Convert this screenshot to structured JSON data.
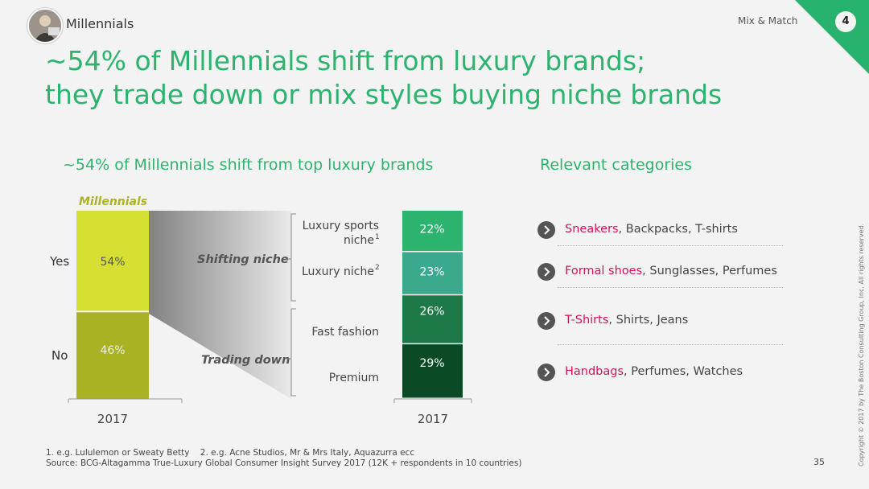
{
  "header": {
    "label": "Millennials",
    "section": "Mix & Match",
    "page_badge": "4"
  },
  "headline": {
    "line1": "~54% of Millennials shift from luxury brands;",
    "line2": "they trade down or mix styles buying niche brands"
  },
  "left_title": "~54% of Millennials shift from top luxury brands",
  "right_title": "Relevant categories",
  "colors": {
    "accent": "#2cb36e",
    "highlight": "#d4145a",
    "yes": "#d6e033",
    "no": "#a8b222",
    "s1": "#2cb36e",
    "s2": "#3ba98c",
    "s3": "#1d7a48",
    "s4": "#0a4a25"
  },
  "chart_data": [
    {
      "type": "bar",
      "title": "Millennials",
      "categories": [
        "2017"
      ],
      "series": [
        {
          "name": "Yes",
          "values": [
            54
          ]
        },
        {
          "name": "No",
          "values": [
            46
          ]
        }
      ],
      "value_labels": [
        "54%",
        "46%"
      ],
      "ylim": [
        0,
        100
      ],
      "annotations": [
        "Shifting niche",
        "Trading down"
      ]
    },
    {
      "type": "bar",
      "categories": [
        "2017"
      ],
      "series": [
        {
          "name": "Luxury sports niche",
          "values": [
            22
          ]
        },
        {
          "name": "Luxury niche",
          "values": [
            23
          ]
        },
        {
          "name": "Fast fashion",
          "values": [
            26
          ]
        },
        {
          "name": "Premium",
          "values": [
            29
          ]
        }
      ],
      "value_labels": [
        "22%",
        "23%",
        "26%",
        "29%"
      ],
      "ylim": [
        0,
        100
      ]
    }
  ],
  "stack_labels": {
    "s1_line1": "Luxury sports",
    "s1_line2": "niche",
    "s1_sup": "1",
    "s2": "Luxury niche",
    "s2_sup": "2",
    "s3": "Fast fashion",
    "s4": "Premium"
  },
  "categories": [
    {
      "highlight": "Sneakers",
      "rest": ", Backpacks, T-shirts"
    },
    {
      "highlight": "Formal shoes",
      "rest": ", Sunglasses, Perfumes"
    },
    {
      "highlight": "T-Shirts",
      "rest": ", Shirts, Jeans"
    },
    {
      "highlight": "Handbags",
      "rest": ", Perfumes, Watches"
    }
  ],
  "footnotes": {
    "line1": "1. e.g. Lululemon or Sweaty Betty    2. e.g. Acne Studios, Mr & Mrs Italy, Aquazurra ecc",
    "line2": "Source: BCG-Altagamma True-Luxury Global Consumer Insight Survey 2017 (12K + respondents in 10 countries)"
  },
  "page_number": "35",
  "copyright": "Copyright © 2017 by The Boston Consulting Group, Inc. All rights reserved."
}
